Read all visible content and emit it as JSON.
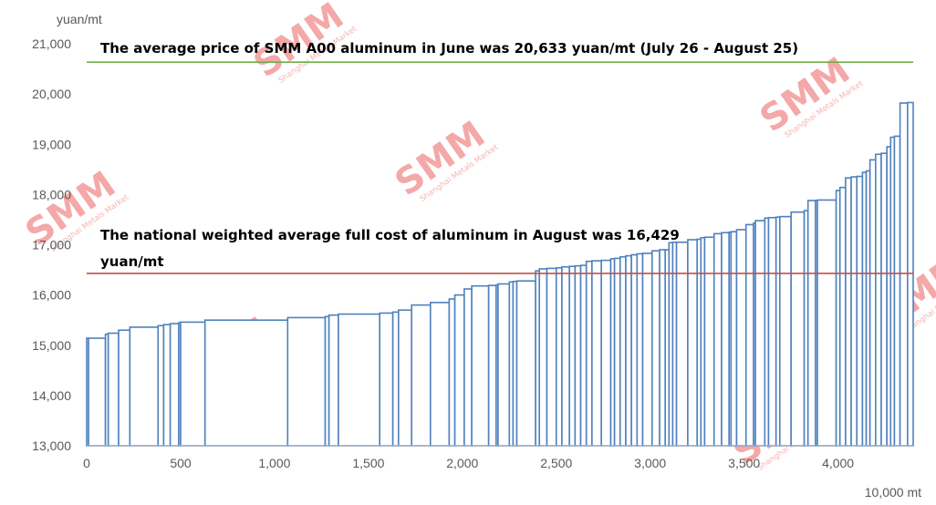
{
  "chart_data": {
    "type": "area",
    "ylabel": "yuan/mt",
    "xlabel": "10,000 mt",
    "xlim": [
      0,
      4400
    ],
    "ylim": [
      13000,
      21000
    ],
    "x_ticks": [
      0,
      500,
      1000,
      1500,
      2000,
      2500,
      3000,
      3500,
      4000
    ],
    "x_tick_labels": [
      "0",
      "500",
      "1,000",
      "1,500",
      "2,000",
      "2,500",
      "3,000",
      "3,500",
      "4,000"
    ],
    "y_ticks": [
      13000,
      14000,
      15000,
      16000,
      17000,
      18000,
      19000,
      20000,
      21000
    ],
    "y_tick_labels": [
      "13,000",
      "14,000",
      "15,000",
      "16,000",
      "17,000",
      "18,000",
      "19,000",
      "20,000",
      "21,000"
    ],
    "grid": false,
    "series": [
      {
        "x": [
          0,
          10,
          100,
          115,
          170,
          230,
          380,
          410,
          445,
          490,
          500,
          630,
          1070,
          1270,
          1290,
          1340,
          1560,
          1630,
          1660,
          1730,
          1830,
          1930,
          1960,
          2010,
          2050,
          2140,
          2180,
          2190,
          2250,
          2270,
          2290,
          2390,
          2410,
          2450,
          2500,
          2530,
          2570,
          2600,
          2630,
          2660,
          2690,
          2740,
          2790,
          2810,
          2840,
          2870,
          2900,
          2930,
          2960,
          3010,
          3050,
          3080,
          3100,
          3120,
          3140,
          3200,
          3250,
          3270,
          3290,
          3340,
          3380,
          3420,
          3430,
          3460,
          3510,
          3550,
          3560,
          3610,
          3630,
          3670,
          3690,
          3750,
          3820,
          3840,
          3880,
          3890,
          3990,
          4010,
          4040,
          4070,
          4100,
          4130,
          4150,
          4170,
          4200,
          4230,
          4260,
          4280,
          4300,
          4330,
          4370
        ],
        "y": [
          15140,
          15140,
          15220,
          15240,
          15300,
          15360,
          15390,
          15410,
          15430,
          15450,
          15460,
          15500,
          15550,
          15570,
          15600,
          15620,
          15640,
          15660,
          15700,
          15800,
          15850,
          15920,
          16000,
          16120,
          16180,
          16190,
          16200,
          16220,
          16260,
          16270,
          16280,
          16480,
          16520,
          16530,
          16540,
          16560,
          16570,
          16580,
          16590,
          16670,
          16680,
          16690,
          16720,
          16730,
          16760,
          16780,
          16800,
          16820,
          16830,
          16880,
          16900,
          16900,
          17040,
          17050,
          17050,
          17100,
          17110,
          17140,
          17150,
          17220,
          17240,
          17250,
          17260,
          17300,
          17400,
          17430,
          17480,
          17530,
          17540,
          17550,
          17560,
          17650,
          17680,
          17880,
          17880,
          17890,
          18080,
          18140,
          18330,
          18350,
          18360,
          18440,
          18470,
          18690,
          18800,
          18820,
          18950,
          19140,
          19160,
          19820,
          19830
        ]
      }
    ],
    "reference_lines": [
      {
        "y": 20633,
        "color": "#70ad47"
      },
      {
        "y": 16429,
        "color": "#c0504d"
      }
    ],
    "annotations": [
      "The average price of SMM A00 aluminum in June was 20,633 yuan/mt (July 26 - August 25)",
      "The national weighted average full cost of aluminum in August was 16,429",
      "yuan/mt"
    ],
    "colors": {
      "bars": "#4f81bd"
    }
  },
  "watermark": {
    "logo": "SMM",
    "subtitle": "Shanghai Metals Market"
  }
}
